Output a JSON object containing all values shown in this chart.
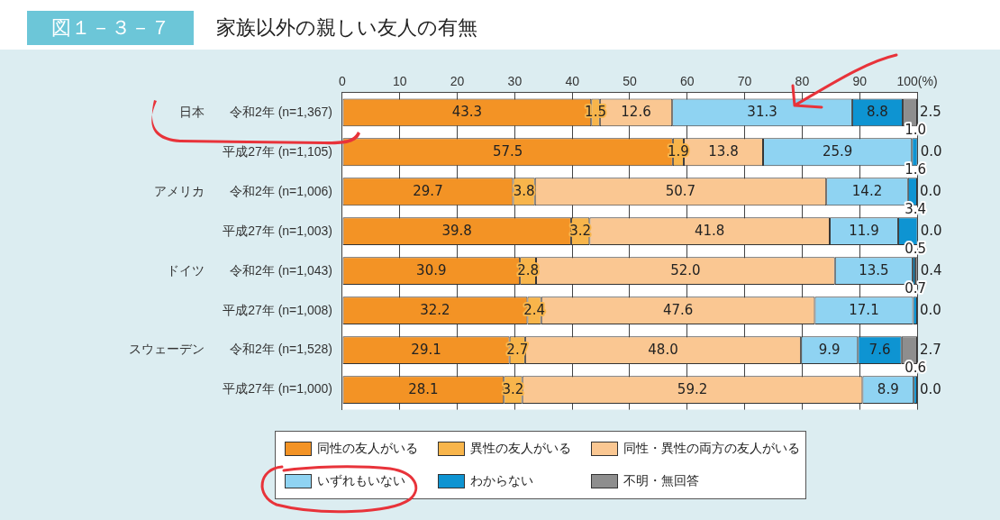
{
  "chart_data": {
    "type": "bar",
    "orientation": "horizontal",
    "stacked": true,
    "title": "家族以外の親しい友人の有無",
    "annotations": [
      "図１－３－７"
    ],
    "categories": [
      "日本　　令和2年 (n=1,367)",
      "平成27年 (n=1,105)",
      "アメリカ　　令和2年 (n=1,006)",
      "平成27年 (n=1,003)",
      "ドイツ　　令和2年 (n=1,043)",
      "平成27年 (n=1,008)",
      "スウェーデン　　令和2年 (n=1,528)",
      "平成27年 (n=1,000)"
    ],
    "series": [
      {
        "name": "同性の友人がいる",
        "color": "#f39325",
        "values": [
          43.3,
          57.5,
          29.7,
          39.8,
          30.9,
          32.2,
          29.1,
          28.1
        ],
        "value_labels": [
          "43.3",
          "57.5",
          "29.7",
          "39.8",
          "30.9",
          "32.2",
          "29.1",
          "28.1"
        ]
      },
      {
        "name": "異性の友人がいる",
        "color": "#f8b54b",
        "values": [
          1.5,
          1.9,
          3.8,
          3.2,
          2.8,
          2.4,
          2.7,
          3.2
        ],
        "value_labels": [
          "1.5",
          "1.9",
          "3.8",
          "3.2",
          "2.8",
          "2.4",
          "2.7",
          "3.2"
        ]
      },
      {
        "name": "同性・異性の両方の友人がいる",
        "color": "#fac792",
        "values": [
          12.6,
          13.8,
          50.7,
          41.8,
          52.0,
          47.6,
          48.0,
          59.2
        ],
        "value_labels": [
          "12.6",
          "13.8",
          "50.7",
          "41.8",
          "52.0",
          "47.6",
          "48.0",
          "59.2"
        ]
      },
      {
        "name": "いずれもいない",
        "color": "#8fd3f2",
        "values": [
          31.3,
          25.9,
          14.2,
          11.9,
          13.5,
          17.1,
          9.9,
          8.9
        ],
        "value_labels": [
          "31.3",
          "25.9",
          "14.2",
          "11.9",
          "13.5",
          "17.1",
          "9.9",
          "8.9"
        ]
      },
      {
        "name": "わからない",
        "color": "#0e94d2",
        "values": [
          8.8,
          1.0,
          1.6,
          3.4,
          0.5,
          0.7,
          7.6,
          0.6
        ],
        "value_labels": [
          "8.8",
          "1.0",
          "1.6",
          "3.4",
          "0.5",
          "0.7",
          "7.6",
          "0.6"
        ]
      },
      {
        "name": "不明・無回答",
        "color": "#8e8e8e",
        "values": [
          2.5,
          0.0,
          0.0,
          0.0,
          0.4,
          0.0,
          2.7,
          0.0
        ],
        "value_labels": [
          "2.5",
          "0.0",
          "0.0",
          "0.0",
          "0.4",
          "0.0",
          "2.7",
          "0.0"
        ]
      }
    ],
    "xlim": [
      0,
      100
    ],
    "xticks": [
      0,
      10,
      20,
      30,
      40,
      50,
      60,
      70,
      80,
      90,
      {
        "value": 100,
        "label": "100(%)"
      }
    ],
    "grid": "x",
    "legend": "bottom"
  }
}
